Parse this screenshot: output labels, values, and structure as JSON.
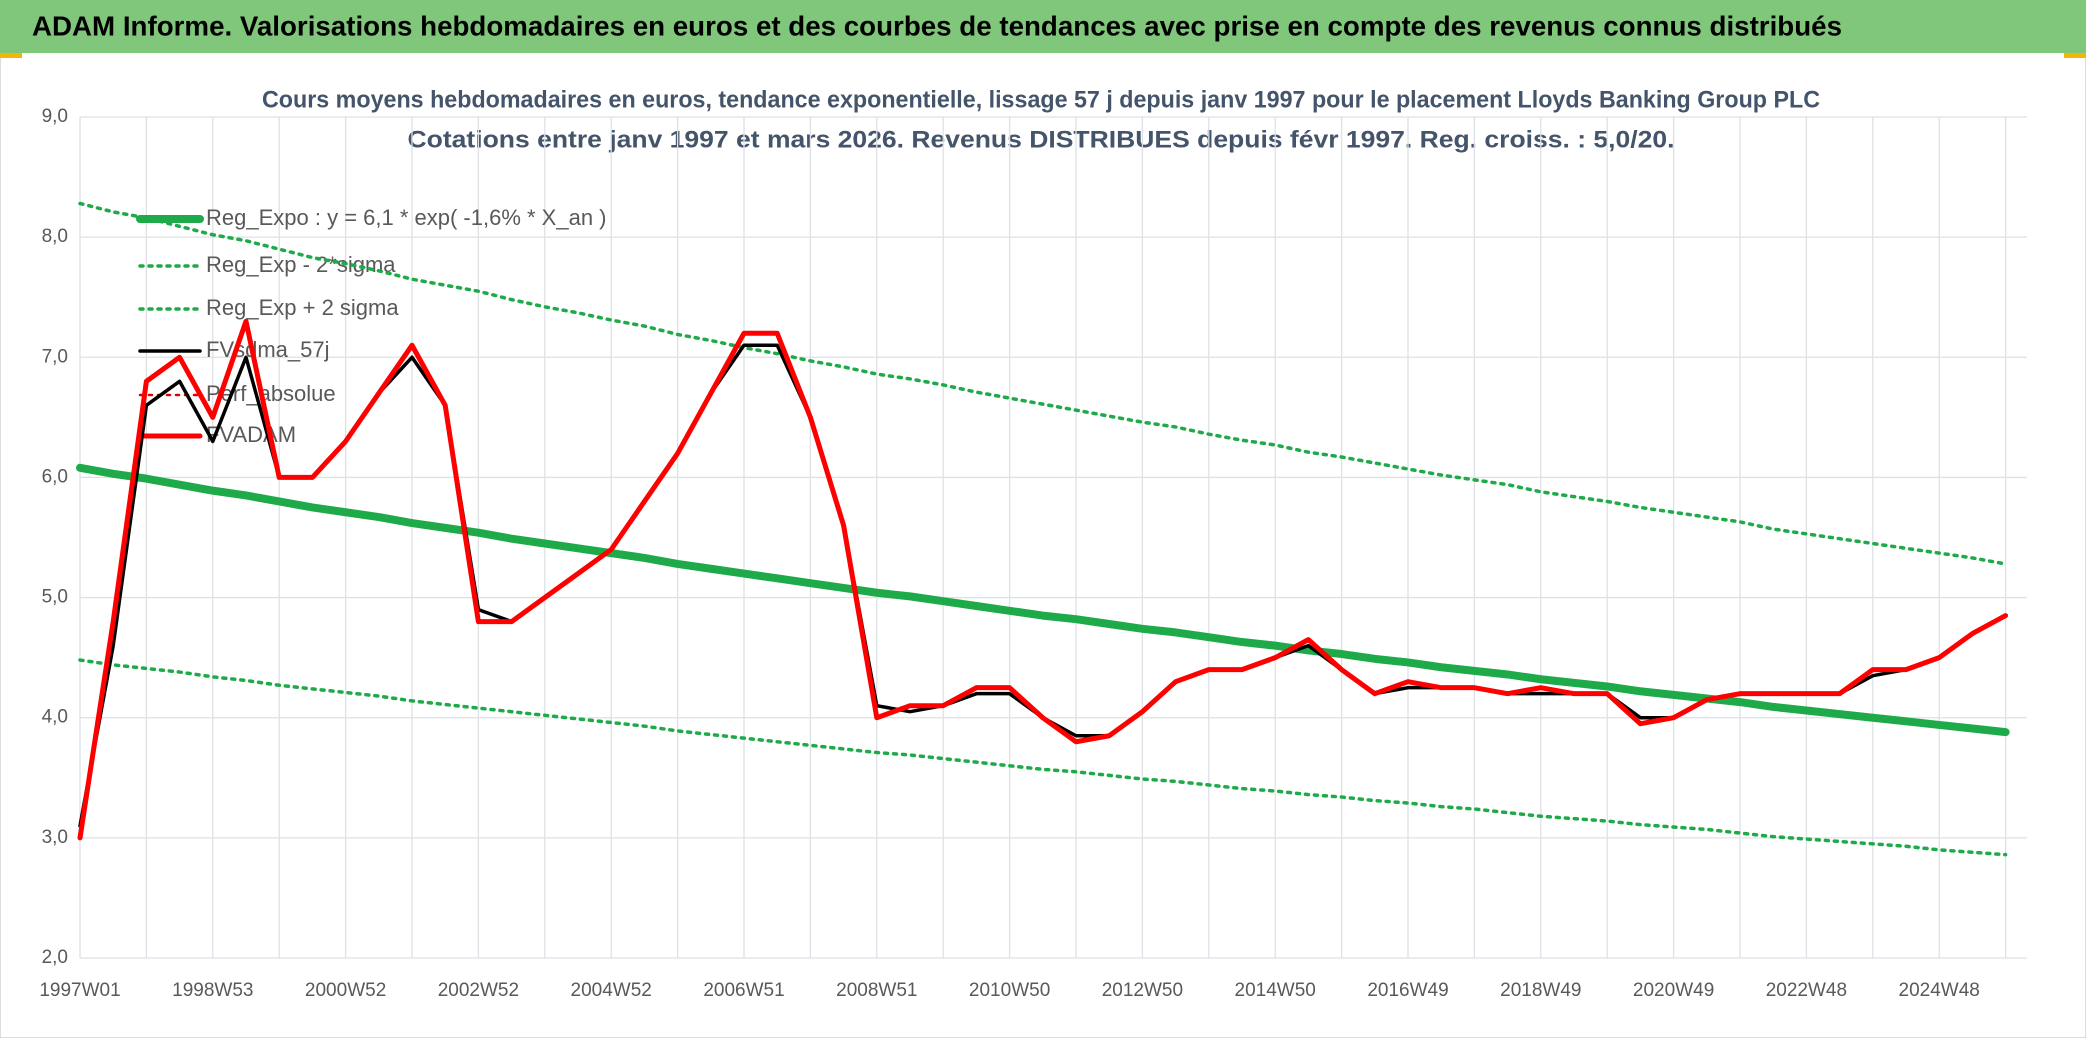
{
  "header": {
    "title": "ADAM Informe. Valorisations hebdomadaires en euros et des courbes de tendances avec prise en compte des revenus connus distribués"
  },
  "chart_data": {
    "type": "line",
    "title": "Cours moyens hebdomadaires en euros, tendance exponentielle, lissage 57 j depuis janv 1997 pour le placement Lloyds Banking Group PLC",
    "subtitle": "Cotations entre janv 1997 et mars 2026. Revenus DISTRIBUES depuis févr 1997. Reg. croiss. : 5,0/20.",
    "categories": [
      "1997W01",
      null,
      null,
      null,
      "1998W53",
      null,
      null,
      null,
      "2000W52",
      null,
      null,
      null,
      "2002W52",
      null,
      null,
      null,
      "2004W52",
      null,
      null,
      null,
      "2006W51",
      null,
      null,
      null,
      "2008W51",
      null,
      null,
      null,
      "2010W50",
      null,
      null,
      null,
      "2012W50",
      null,
      null,
      null,
      "2014W50",
      null,
      null,
      null,
      "2016W49",
      null,
      null,
      null,
      "2018W49",
      null,
      null,
      null,
      "2020W49",
      null,
      null,
      null,
      "2022W48",
      null,
      null,
      null,
      "2024W48",
      null,
      null
    ],
    "ylim": [
      2,
      9
    ],
    "yticks": [
      {
        "value": 2,
        "label": "2,0"
      },
      {
        "value": 3,
        "label": "3,0"
      },
      {
        "value": 4,
        "label": "4,0"
      },
      {
        "value": 5,
        "label": "5,0"
      },
      {
        "value": 6,
        "label": "6,0"
      },
      {
        "value": 7,
        "label": "7,0"
      },
      {
        "value": 8,
        "label": "8,0"
      },
      {
        "value": 9,
        "label": "9,0"
      }
    ],
    "grid": true,
    "legend": "top-left",
    "series": [
      {
        "name": "Reg_Expo : y = 6,1 * exp( -1,6% *  X_an )",
        "color": "#1faa4a",
        "style": "solid",
        "values": [
          6.08,
          6.03,
          5.99,
          5.94,
          5.89,
          5.85,
          5.8,
          5.75,
          5.71,
          5.67,
          5.62,
          5.58,
          5.54,
          5.49,
          5.45,
          5.41,
          5.37,
          5.33,
          5.28,
          5.24,
          5.2,
          5.16,
          5.12,
          5.08,
          5.04,
          5.01,
          4.97,
          4.93,
          4.89,
          4.85,
          4.82,
          4.78,
          4.74,
          4.71,
          4.67,
          4.63,
          4.6,
          4.56,
          4.53,
          4.49,
          4.46,
          4.42,
          4.39,
          4.36,
          4.32,
          4.29,
          4.26,
          4.22,
          4.19,
          4.16,
          4.13,
          4.09,
          4.06,
          4.03,
          4.0,
          3.97,
          3.94,
          3.91,
          3.88
        ]
      },
      {
        "name": "Reg_Exp - 2*sigma",
        "color": "#1faa4a",
        "style": "dotted",
        "values": [
          4.48,
          4.44,
          4.41,
          4.38,
          4.34,
          4.31,
          4.27,
          4.24,
          4.21,
          4.18,
          4.14,
          4.11,
          4.08,
          4.05,
          4.02,
          3.99,
          3.96,
          3.93,
          3.89,
          3.86,
          3.83,
          3.8,
          3.77,
          3.74,
          3.71,
          3.69,
          3.66,
          3.63,
          3.6,
          3.57,
          3.55,
          3.52,
          3.49,
          3.47,
          3.44,
          3.41,
          3.39,
          3.36,
          3.34,
          3.31,
          3.29,
          3.26,
          3.24,
          3.21,
          3.18,
          3.16,
          3.14,
          3.11,
          3.09,
          3.07,
          3.04,
          3.01,
          2.99,
          2.97,
          2.95,
          2.93,
          2.9,
          2.88,
          2.86
        ]
      },
      {
        "name": "Reg_Exp + 2 sigma",
        "color": "#1faa4a",
        "style": "dotted",
        "values": [
          8.28,
          8.21,
          8.16,
          8.09,
          8.02,
          7.97,
          7.9,
          7.83,
          7.78,
          7.72,
          7.65,
          7.6,
          7.55,
          7.48,
          7.42,
          7.37,
          7.31,
          7.26,
          7.19,
          7.14,
          7.08,
          7.03,
          6.97,
          6.92,
          6.86,
          6.82,
          6.77,
          6.71,
          6.66,
          6.61,
          6.56,
          6.51,
          6.46,
          6.42,
          6.36,
          6.31,
          6.27,
          6.21,
          6.17,
          6.12,
          6.07,
          6.02,
          5.98,
          5.94,
          5.88,
          5.84,
          5.8,
          5.75,
          5.71,
          5.67,
          5.63,
          5.57,
          5.53,
          5.49,
          5.45,
          5.41,
          5.37,
          5.33,
          5.28
        ]
      },
      {
        "name": "FVsdma_57j",
        "color": "#000000",
        "style": "solid",
        "values": [
          3.1,
          4.6,
          6.6,
          6.8,
          6.3,
          7.0,
          6.0,
          6.0,
          6.3,
          6.7,
          7.0,
          6.6,
          4.9,
          4.8,
          5.0,
          5.2,
          5.4,
          5.8,
          6.2,
          6.7,
          7.1,
          7.1,
          6.5,
          5.6,
          4.1,
          4.05,
          4.1,
          4.2,
          4.2,
          4.0,
          3.85,
          3.85,
          4.05,
          4.3,
          4.4,
          4.4,
          4.5,
          4.6,
          4.4,
          4.2,
          4.25,
          4.25,
          4.25,
          4.2,
          4.2,
          4.2,
          4.2,
          4.0,
          4.0,
          4.15,
          4.2,
          4.2,
          4.2,
          4.2,
          4.35,
          4.4,
          4.5,
          4.7,
          4.85
        ]
      },
      {
        "name": "Perf_absolue",
        "color": "#e00000",
        "style": "dotted",
        "values": [
          null,
          null,
          null,
          null,
          null,
          null,
          null,
          null,
          null,
          null,
          null,
          null,
          null,
          null,
          null,
          null,
          null,
          null,
          null,
          null,
          null,
          null,
          null,
          null,
          null,
          null,
          null,
          null,
          null,
          null,
          null,
          null,
          null,
          null,
          null,
          null,
          null,
          null,
          null,
          null,
          null,
          null,
          null,
          null,
          null,
          null,
          null,
          null,
          null,
          null,
          null,
          null,
          null,
          null,
          null,
          null,
          null,
          null,
          null
        ]
      },
      {
        "name": "FVADAM",
        "color": "#ff0000",
        "style": "solid",
        "values": [
          3.0,
          4.8,
          6.8,
          7.0,
          6.5,
          7.3,
          6.0,
          6.0,
          6.3,
          6.7,
          7.1,
          6.6,
          4.8,
          4.8,
          5.0,
          5.2,
          5.4,
          5.8,
          6.2,
          6.7,
          7.2,
          7.2,
          6.5,
          5.6,
          4.0,
          4.1,
          4.1,
          4.25,
          4.25,
          4.0,
          3.8,
          3.85,
          4.05,
          4.3,
          4.4,
          4.4,
          4.5,
          4.65,
          4.4,
          4.2,
          4.3,
          4.25,
          4.25,
          4.2,
          4.25,
          4.2,
          4.2,
          3.95,
          4.0,
          4.15,
          4.2,
          4.2,
          4.2,
          4.2,
          4.4,
          4.4,
          4.5,
          4.7,
          4.85
        ]
      }
    ]
  }
}
